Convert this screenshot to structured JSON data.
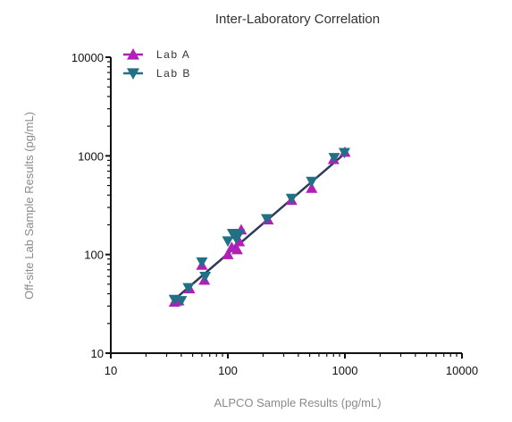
{
  "chart_data": {
    "type": "scatter",
    "title": "Inter-Laboratory Correlation",
    "xlabel": "ALPCO Sample Results (pg/mL)",
    "ylabel": "Off-site Lab Sample Results (pg/mL)",
    "xscale": "log",
    "yscale": "log",
    "xlim": [
      10,
      10000
    ],
    "ylim": [
      10,
      10000
    ],
    "xticks": [
      "10",
      "100",
      "1000",
      "10000"
    ],
    "yticks": [
      "10",
      "100",
      "1000",
      "10000"
    ],
    "grid": false,
    "legend": "top-left",
    "series": [
      {
        "name": "Lab A",
        "marker": "triangle-up",
        "color": "#b21fb8",
        "points": [
          [
            35,
            33
          ],
          [
            38,
            34
          ],
          [
            47,
            45
          ],
          [
            60,
            78
          ],
          [
            63,
            55
          ],
          [
            100,
            100
          ],
          [
            108,
            118
          ],
          [
            120,
            112
          ],
          [
            125,
            135
          ],
          [
            130,
            178
          ],
          [
            220,
            225
          ],
          [
            350,
            355
          ],
          [
            520,
            470
          ],
          [
            800,
            920
          ],
          [
            1000,
            1090
          ]
        ]
      },
      {
        "name": "Lab B",
        "marker": "triangle-down",
        "color": "#217085",
        "points": [
          [
            35,
            35
          ],
          [
            40,
            34
          ],
          [
            46,
            46
          ],
          [
            60,
            84
          ],
          [
            64,
            60
          ],
          [
            100,
            137
          ],
          [
            110,
            163
          ],
          [
            118,
            145
          ],
          [
            125,
            162
          ],
          [
            215,
            230
          ],
          [
            350,
            370
          ],
          [
            520,
            550
          ],
          [
            810,
            960
          ],
          [
            990,
            1080
          ]
        ]
      }
    ],
    "fit_line": {
      "color": "#2e3a5c",
      "x": [
        35,
        1000
      ],
      "y": [
        35,
        1060
      ]
    }
  }
}
